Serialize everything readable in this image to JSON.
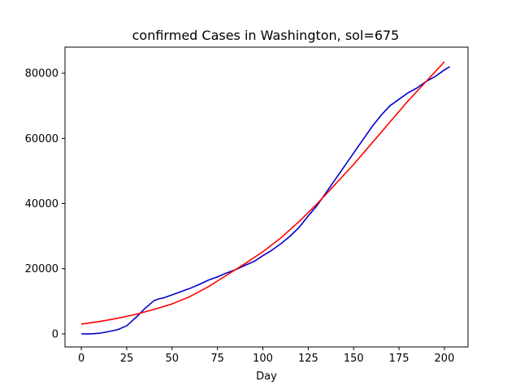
{
  "chart_data": {
    "type": "line",
    "title": "confirmed Cases in Washington, sol=675",
    "xlabel": "Day",
    "ylabel": "",
    "xlim": [
      -9,
      213
    ],
    "ylim": [
      -4000,
      88000
    ],
    "xticks": [
      0,
      25,
      50,
      75,
      100,
      125,
      150,
      175,
      200
    ],
    "yticks": [
      0,
      20000,
      40000,
      60000,
      80000
    ],
    "grid": false,
    "legend": "none",
    "series": [
      {
        "color": "#0000cc",
        "x": [
          0,
          5,
          10,
          15,
          20,
          25,
          30,
          35,
          40,
          43,
          45,
          50,
          55,
          60,
          65,
          70,
          75,
          80,
          85,
          90,
          95,
          100,
          105,
          110,
          115,
          120,
          125,
          130,
          135,
          140,
          145,
          150,
          155,
          160,
          165,
          170,
          175,
          180,
          185,
          190,
          195,
          200,
          203
        ],
        "y": [
          0,
          0,
          200,
          700,
          1300,
          2500,
          5000,
          7800,
          10200,
          10800,
          11000,
          12000,
          13000,
          14000,
          15200,
          16500,
          17500,
          18700,
          19700,
          21000,
          22200,
          24000,
          25700,
          27700,
          30000,
          32700,
          36200,
          39500,
          43500,
          47500,
          51500,
          55500,
          59500,
          63500,
          67000,
          70000,
          72000,
          74000,
          75500,
          77500,
          79000,
          81000,
          82000
        ]
      },
      {
        "color": "#ff0000",
        "x": [
          0,
          10,
          20,
          30,
          40,
          50,
          60,
          70,
          80,
          90,
          100,
          110,
          120,
          130,
          140,
          150,
          160,
          170,
          180,
          190,
          200
        ],
        "y": [
          3000,
          3800,
          4800,
          6000,
          7500,
          9200,
          11500,
          14500,
          18000,
          21500,
          25200,
          29500,
          34500,
          40000,
          46000,
          52000,
          58500,
          65000,
          71500,
          77500,
          83500
        ]
      }
    ]
  }
}
